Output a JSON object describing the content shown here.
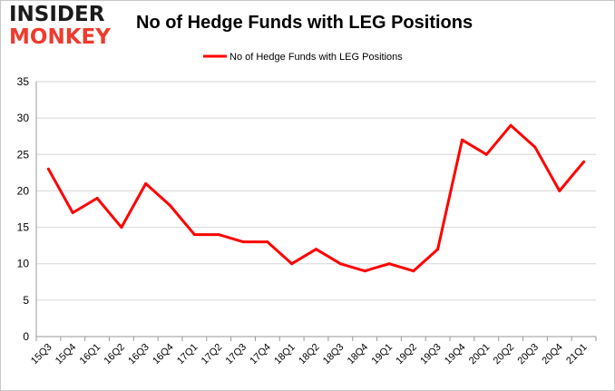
{
  "logo": {
    "line1": "INSIDER",
    "line2": "MONKEY"
  },
  "chart_data": {
    "type": "line",
    "title": "No of Hedge Funds with LEG Positions",
    "xlabel": "",
    "ylabel": "",
    "categories": [
      "15Q3",
      "15Q4",
      "16Q1",
      "16Q2",
      "16Q3",
      "16Q4",
      "17Q1",
      "17Q2",
      "17Q3",
      "17Q4",
      "18Q1",
      "18Q2",
      "18Q3",
      "18Q4",
      "19Q1",
      "19Q2",
      "19Q3",
      "19Q4",
      "20Q1",
      "20Q2",
      "20Q3",
      "20Q4",
      "21Q1"
    ],
    "series": [
      {
        "name": "No of Hedge Funds with LEG Positions",
        "color": "#ff0000",
        "values": [
          23,
          17,
          19,
          15,
          21,
          18,
          14,
          14,
          13,
          13,
          10,
          12,
          10,
          9,
          10,
          9,
          12,
          27,
          25,
          29,
          26,
          20,
          24
        ]
      }
    ],
    "ylim": [
      0,
      35
    ],
    "yticks": [
      0,
      5,
      10,
      15,
      20,
      25,
      30,
      35
    ],
    "grid": true,
    "legend": "top-center"
  }
}
